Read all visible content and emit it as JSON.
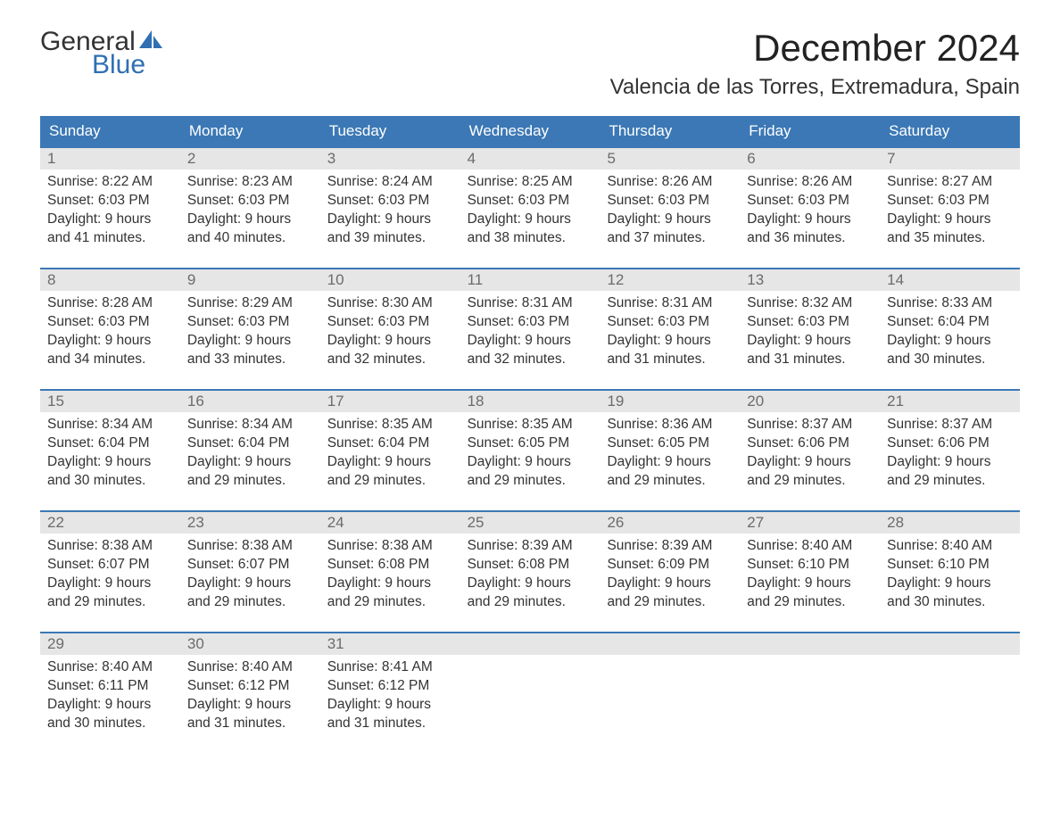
{
  "brand": {
    "word1": "General",
    "word2": "Blue",
    "accent_color": "#2f6fb2",
    "text_color": "#333333"
  },
  "header": {
    "month_title": "December 2024",
    "location": "Valencia de las Torres, Extremadura, Spain"
  },
  "calendar": {
    "weekdays": [
      "Sunday",
      "Monday",
      "Tuesday",
      "Wednesday",
      "Thursday",
      "Friday",
      "Saturday"
    ],
    "header_bg": "#3b78b5",
    "header_text_color": "#ffffff",
    "week_border_color": "#3b78b5",
    "daynum_bg": "#e6e6e6",
    "daynum_color": "#6b6b6b",
    "body_text_color": "#333333",
    "background_color": "#ffffff"
  },
  "weeks": [
    {
      "days": [
        {
          "num": "1",
          "sunrise": "Sunrise: 8:22 AM",
          "sunset": "Sunset: 6:03 PM",
          "day1": "Daylight: 9 hours",
          "day2": "and 41 minutes."
        },
        {
          "num": "2",
          "sunrise": "Sunrise: 8:23 AM",
          "sunset": "Sunset: 6:03 PM",
          "day1": "Daylight: 9 hours",
          "day2": "and 40 minutes."
        },
        {
          "num": "3",
          "sunrise": "Sunrise: 8:24 AM",
          "sunset": "Sunset: 6:03 PM",
          "day1": "Daylight: 9 hours",
          "day2": "and 39 minutes."
        },
        {
          "num": "4",
          "sunrise": "Sunrise: 8:25 AM",
          "sunset": "Sunset: 6:03 PM",
          "day1": "Daylight: 9 hours",
          "day2": "and 38 minutes."
        },
        {
          "num": "5",
          "sunrise": "Sunrise: 8:26 AM",
          "sunset": "Sunset: 6:03 PM",
          "day1": "Daylight: 9 hours",
          "day2": "and 37 minutes."
        },
        {
          "num": "6",
          "sunrise": "Sunrise: 8:26 AM",
          "sunset": "Sunset: 6:03 PM",
          "day1": "Daylight: 9 hours",
          "day2": "and 36 minutes."
        },
        {
          "num": "7",
          "sunrise": "Sunrise: 8:27 AM",
          "sunset": "Sunset: 6:03 PM",
          "day1": "Daylight: 9 hours",
          "day2": "and 35 minutes."
        }
      ]
    },
    {
      "days": [
        {
          "num": "8",
          "sunrise": "Sunrise: 8:28 AM",
          "sunset": "Sunset: 6:03 PM",
          "day1": "Daylight: 9 hours",
          "day2": "and 34 minutes."
        },
        {
          "num": "9",
          "sunrise": "Sunrise: 8:29 AM",
          "sunset": "Sunset: 6:03 PM",
          "day1": "Daylight: 9 hours",
          "day2": "and 33 minutes."
        },
        {
          "num": "10",
          "sunrise": "Sunrise: 8:30 AM",
          "sunset": "Sunset: 6:03 PM",
          "day1": "Daylight: 9 hours",
          "day2": "and 32 minutes."
        },
        {
          "num": "11",
          "sunrise": "Sunrise: 8:31 AM",
          "sunset": "Sunset: 6:03 PM",
          "day1": "Daylight: 9 hours",
          "day2": "and 32 minutes."
        },
        {
          "num": "12",
          "sunrise": "Sunrise: 8:31 AM",
          "sunset": "Sunset: 6:03 PM",
          "day1": "Daylight: 9 hours",
          "day2": "and 31 minutes."
        },
        {
          "num": "13",
          "sunrise": "Sunrise: 8:32 AM",
          "sunset": "Sunset: 6:03 PM",
          "day1": "Daylight: 9 hours",
          "day2": "and 31 minutes."
        },
        {
          "num": "14",
          "sunrise": "Sunrise: 8:33 AM",
          "sunset": "Sunset: 6:04 PM",
          "day1": "Daylight: 9 hours",
          "day2": "and 30 minutes."
        }
      ]
    },
    {
      "days": [
        {
          "num": "15",
          "sunrise": "Sunrise: 8:34 AM",
          "sunset": "Sunset: 6:04 PM",
          "day1": "Daylight: 9 hours",
          "day2": "and 30 minutes."
        },
        {
          "num": "16",
          "sunrise": "Sunrise: 8:34 AM",
          "sunset": "Sunset: 6:04 PM",
          "day1": "Daylight: 9 hours",
          "day2": "and 29 minutes."
        },
        {
          "num": "17",
          "sunrise": "Sunrise: 8:35 AM",
          "sunset": "Sunset: 6:04 PM",
          "day1": "Daylight: 9 hours",
          "day2": "and 29 minutes."
        },
        {
          "num": "18",
          "sunrise": "Sunrise: 8:35 AM",
          "sunset": "Sunset: 6:05 PM",
          "day1": "Daylight: 9 hours",
          "day2": "and 29 minutes."
        },
        {
          "num": "19",
          "sunrise": "Sunrise: 8:36 AM",
          "sunset": "Sunset: 6:05 PM",
          "day1": "Daylight: 9 hours",
          "day2": "and 29 minutes."
        },
        {
          "num": "20",
          "sunrise": "Sunrise: 8:37 AM",
          "sunset": "Sunset: 6:06 PM",
          "day1": "Daylight: 9 hours",
          "day2": "and 29 minutes."
        },
        {
          "num": "21",
          "sunrise": "Sunrise: 8:37 AM",
          "sunset": "Sunset: 6:06 PM",
          "day1": "Daylight: 9 hours",
          "day2": "and 29 minutes."
        }
      ]
    },
    {
      "days": [
        {
          "num": "22",
          "sunrise": "Sunrise: 8:38 AM",
          "sunset": "Sunset: 6:07 PM",
          "day1": "Daylight: 9 hours",
          "day2": "and 29 minutes."
        },
        {
          "num": "23",
          "sunrise": "Sunrise: 8:38 AM",
          "sunset": "Sunset: 6:07 PM",
          "day1": "Daylight: 9 hours",
          "day2": "and 29 minutes."
        },
        {
          "num": "24",
          "sunrise": "Sunrise: 8:38 AM",
          "sunset": "Sunset: 6:08 PM",
          "day1": "Daylight: 9 hours",
          "day2": "and 29 minutes."
        },
        {
          "num": "25",
          "sunrise": "Sunrise: 8:39 AM",
          "sunset": "Sunset: 6:08 PM",
          "day1": "Daylight: 9 hours",
          "day2": "and 29 minutes."
        },
        {
          "num": "26",
          "sunrise": "Sunrise: 8:39 AM",
          "sunset": "Sunset: 6:09 PM",
          "day1": "Daylight: 9 hours",
          "day2": "and 29 minutes."
        },
        {
          "num": "27",
          "sunrise": "Sunrise: 8:40 AM",
          "sunset": "Sunset: 6:10 PM",
          "day1": "Daylight: 9 hours",
          "day2": "and 29 minutes."
        },
        {
          "num": "28",
          "sunrise": "Sunrise: 8:40 AM",
          "sunset": "Sunset: 6:10 PM",
          "day1": "Daylight: 9 hours",
          "day2": "and 30 minutes."
        }
      ]
    },
    {
      "days": [
        {
          "num": "29",
          "sunrise": "Sunrise: 8:40 AM",
          "sunset": "Sunset: 6:11 PM",
          "day1": "Daylight: 9 hours",
          "day2": "and 30 minutes."
        },
        {
          "num": "30",
          "sunrise": "Sunrise: 8:40 AM",
          "sunset": "Sunset: 6:12 PM",
          "day1": "Daylight: 9 hours",
          "day2": "and 31 minutes."
        },
        {
          "num": "31",
          "sunrise": "Sunrise: 8:41 AM",
          "sunset": "Sunset: 6:12 PM",
          "day1": "Daylight: 9 hours",
          "day2": "and 31 minutes."
        },
        {
          "num": "",
          "sunrise": "",
          "sunset": "",
          "day1": "",
          "day2": ""
        },
        {
          "num": "",
          "sunrise": "",
          "sunset": "",
          "day1": "",
          "day2": ""
        },
        {
          "num": "",
          "sunrise": "",
          "sunset": "",
          "day1": "",
          "day2": ""
        },
        {
          "num": "",
          "sunrise": "",
          "sunset": "",
          "day1": "",
          "day2": ""
        }
      ]
    }
  ]
}
